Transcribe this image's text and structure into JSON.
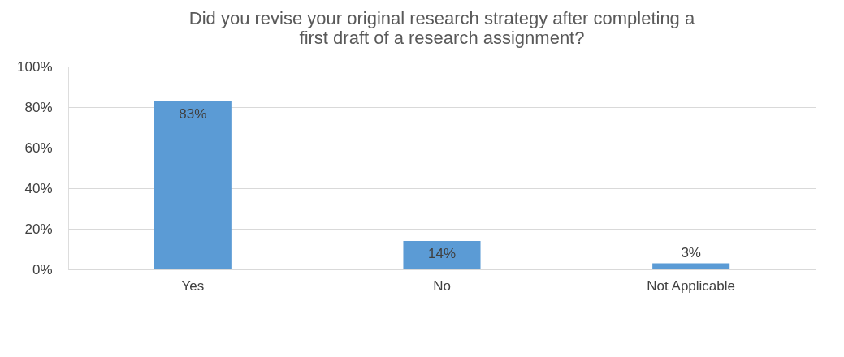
{
  "chart_data": {
    "type": "bar",
    "title": "Did you revise your original research strategy after completing a first draft of a research assignment?",
    "categories": [
      "Yes",
      "No",
      "Not Applicable"
    ],
    "values": [
      83,
      14,
      3
    ],
    "value_labels": [
      "83%",
      "14%",
      "3%"
    ],
    "color": "#5b9bd5",
    "ylim": [
      0,
      100
    ],
    "yticks": [
      {
        "value": 0,
        "label": "0%"
      },
      {
        "value": 20,
        "label": "20%"
      },
      {
        "value": 40,
        "label": "40%"
      },
      {
        "value": 60,
        "label": "60%"
      },
      {
        "value": 80,
        "label": "80%"
      },
      {
        "value": 100,
        "label": "100%"
      }
    ],
    "grid": "y"
  }
}
